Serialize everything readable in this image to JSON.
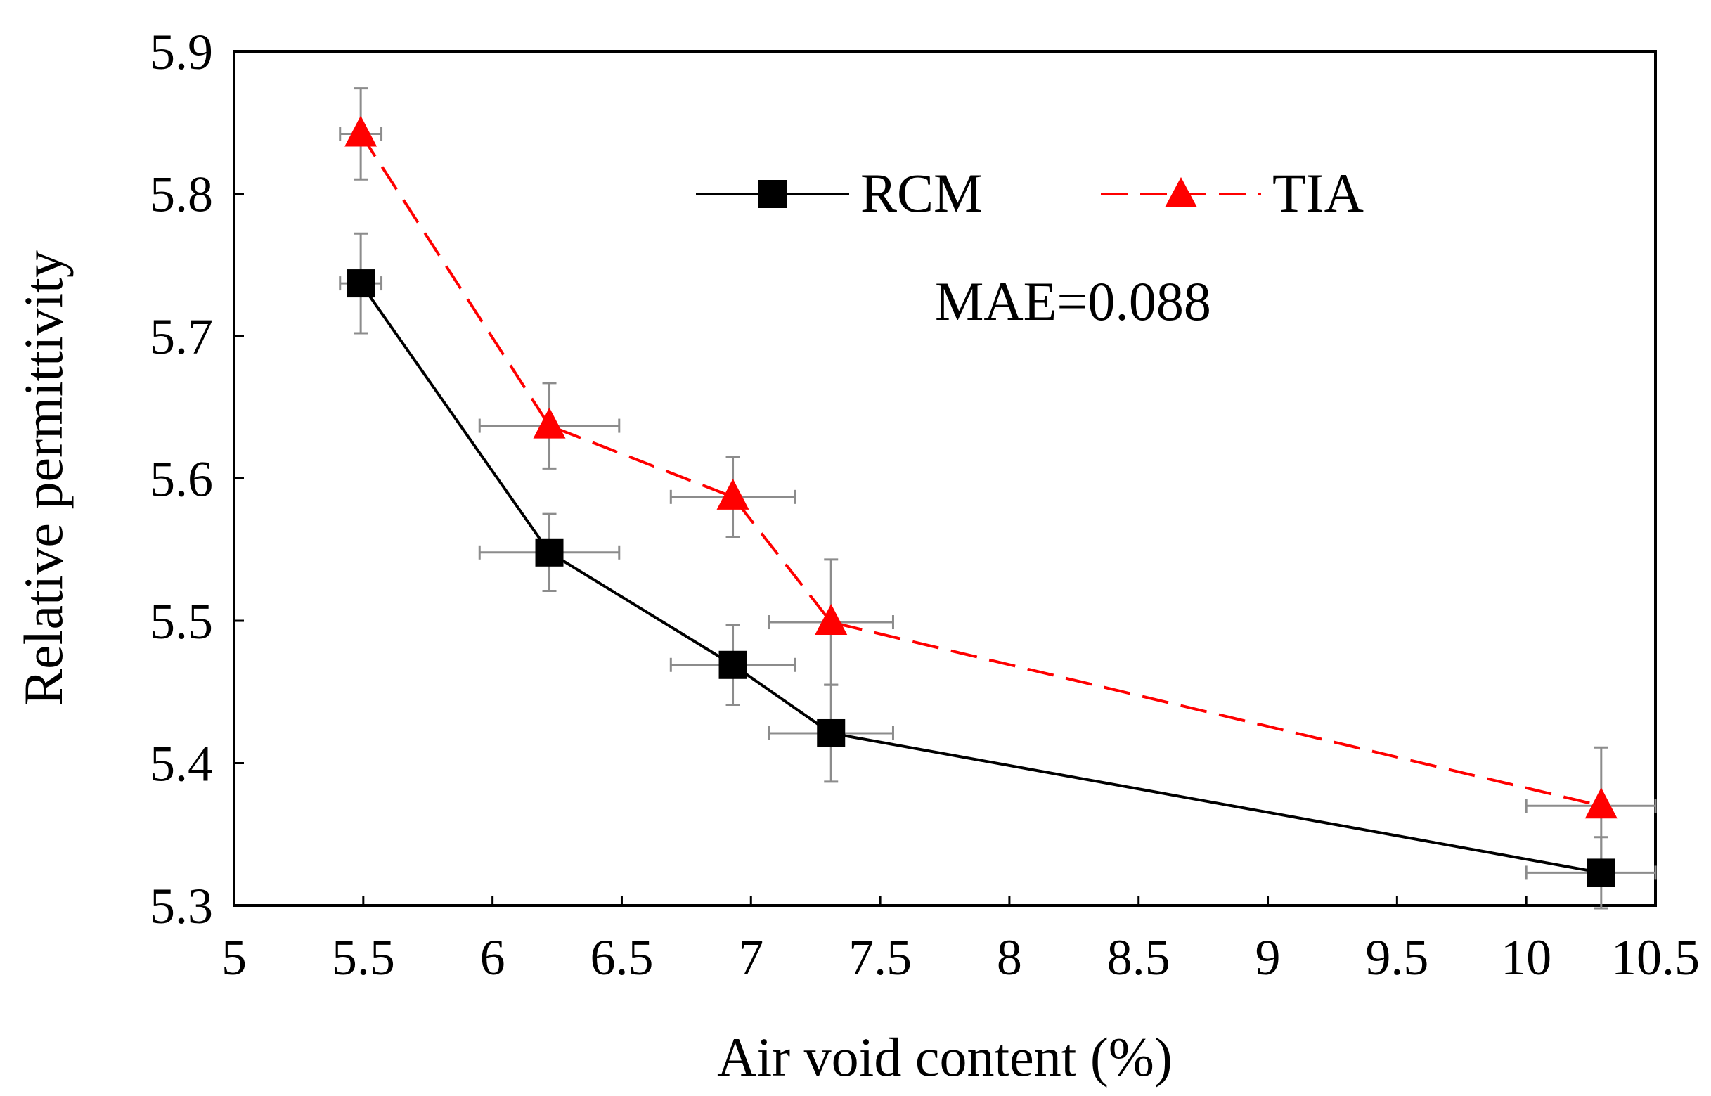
{
  "chart_data": {
    "type": "line",
    "title": "",
    "xlabel": "Air void content (%)",
    "ylabel": "Relative permittivity",
    "xlim": [
      5,
      10.5
    ],
    "ylim": [
      5.3,
      5.9
    ],
    "xticks": [
      5,
      5.5,
      6,
      6.5,
      7,
      7.5,
      8,
      8.5,
      9,
      9.5,
      10,
      10.5
    ],
    "yticks": [
      5.3,
      5.4,
      5.5,
      5.6,
      5.7,
      5.8,
      5.9
    ],
    "xtick_labels": [
      "5",
      "5.5",
      "6",
      "6.5",
      "7",
      "7.5",
      "8",
      "8.5",
      "9",
      "9.5",
      "10",
      "10.5"
    ],
    "ytick_labels": [
      "5.3",
      "5.4",
      "5.5",
      "5.6",
      "5.7",
      "5.8",
      "5.9"
    ],
    "grid": false,
    "legend_position": "top-center",
    "annotation": "MAE=0.088",
    "series": [
      {
        "name": "RCM",
        "color": "#000000",
        "marker": "square",
        "line_style": "solid",
        "points": [
          {
            "x": 5.49,
            "y": 5.737,
            "xerr": 0.08,
            "yerr": 0.035
          },
          {
            "x": 6.22,
            "y": 5.548,
            "xerr": 0.27,
            "yerr": 0.027
          },
          {
            "x": 6.93,
            "y": 5.469,
            "xerr": 0.24,
            "yerr": 0.028
          },
          {
            "x": 7.31,
            "y": 5.421,
            "xerr": 0.24,
            "yerr": 0.034
          },
          {
            "x": 10.29,
            "y": 5.323,
            "xerr": 0.29,
            "yerr": 0.025
          }
        ]
      },
      {
        "name": "TIA",
        "color": "#ff0000",
        "marker": "triangle",
        "line_style": "dashed",
        "points": [
          {
            "x": 5.49,
            "y": 5.842,
            "xerr": 0.08,
            "yerr": 0.032
          },
          {
            "x": 6.22,
            "y": 5.637,
            "xerr": 0.27,
            "yerr": 0.03
          },
          {
            "x": 6.93,
            "y": 5.587,
            "xerr": 0.24,
            "yerr": 0.028
          },
          {
            "x": 7.31,
            "y": 5.499,
            "xerr": 0.24,
            "yerr": 0.044
          },
          {
            "x": 10.29,
            "y": 5.37,
            "xerr": 0.29,
            "yerr": 0.041
          }
        ]
      }
    ]
  }
}
